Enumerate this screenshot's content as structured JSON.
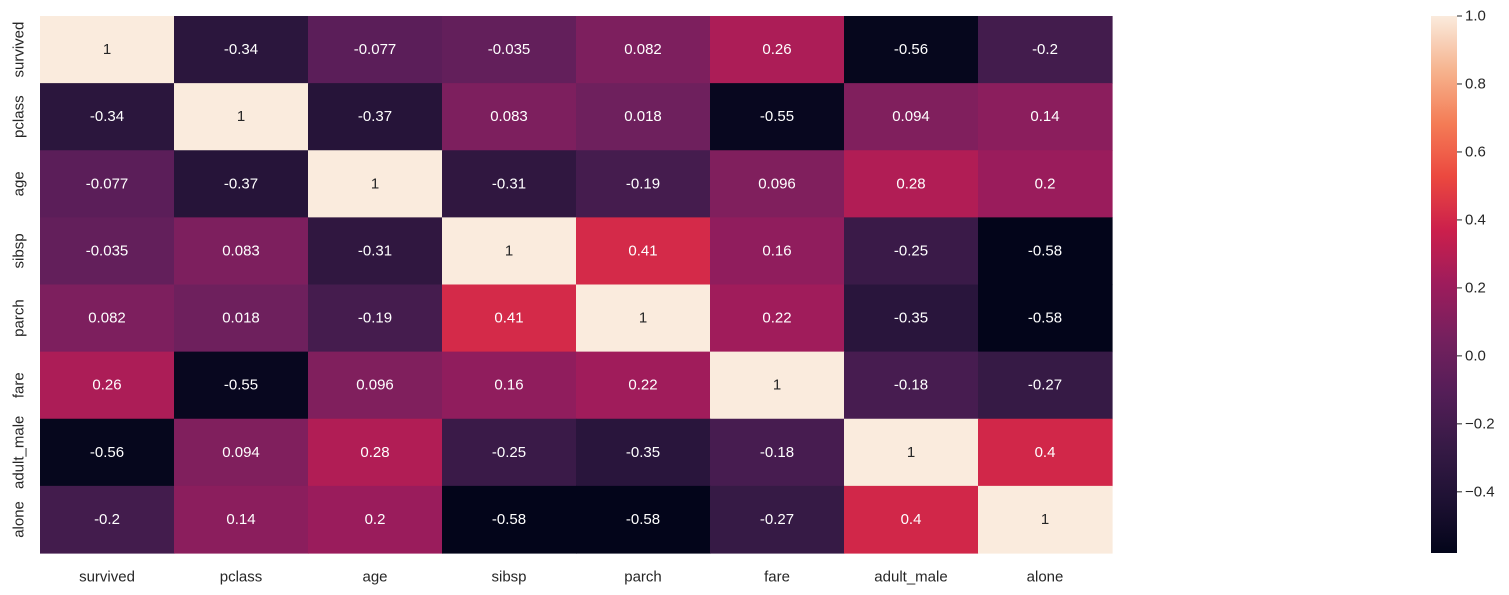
{
  "chart_data": {
    "type": "heatmap",
    "title": "",
    "xlabel": "",
    "ylabel": "",
    "x_labels": [
      "survived",
      "pclass",
      "age",
      "sibsp",
      "parch",
      "fare",
      "adult_male",
      "alone"
    ],
    "y_labels": [
      "survived",
      "pclass",
      "age",
      "sibsp",
      "parch",
      "fare",
      "adult_male",
      "alone"
    ],
    "values": [
      [
        1,
        -0.34,
        -0.077,
        -0.035,
        0.082,
        0.26,
        -0.56,
        -0.2
      ],
      [
        -0.34,
        1,
        -0.37,
        0.083,
        0.018,
        -0.55,
        0.094,
        0.14
      ],
      [
        -0.077,
        -0.37,
        1,
        -0.31,
        -0.19,
        0.096,
        0.28,
        0.2
      ],
      [
        -0.035,
        0.083,
        -0.31,
        1,
        0.41,
        0.16,
        -0.25,
        -0.58
      ],
      [
        0.082,
        0.018,
        -0.19,
        0.41,
        1,
        0.22,
        -0.35,
        -0.58
      ],
      [
        0.26,
        -0.55,
        0.096,
        0.16,
        0.22,
        1,
        -0.18,
        -0.27
      ],
      [
        -0.56,
        0.094,
        0.28,
        -0.25,
        -0.35,
        -0.18,
        1,
        0.4
      ],
      [
        -0.2,
        0.14,
        0.2,
        -0.58,
        -0.58,
        -0.27,
        0.4,
        1
      ]
    ],
    "annotations": [
      [
        "1",
        "-0.34",
        "-0.077",
        "-0.035",
        "0.082",
        "0.26",
        "-0.56",
        "-0.2"
      ],
      [
        "-0.34",
        "1",
        "-0.37",
        "0.083",
        "0.018",
        "-0.55",
        "0.094",
        "0.14"
      ],
      [
        "-0.077",
        "-0.37",
        "1",
        "-0.31",
        "-0.19",
        "0.096",
        "0.28",
        "0.2"
      ],
      [
        "-0.035",
        "0.083",
        "-0.31",
        "1",
        "0.41",
        "0.16",
        "-0.25",
        "-0.58"
      ],
      [
        "0.082",
        "0.018",
        "-0.19",
        "0.41",
        "1",
        "0.22",
        "-0.35",
        "-0.58"
      ],
      [
        "0.26",
        "-0.55",
        "0.096",
        "0.16",
        "0.22",
        "1",
        "-0.18",
        "-0.27"
      ],
      [
        "-0.56",
        "0.094",
        "0.28",
        "-0.25",
        "-0.35",
        "-0.18",
        "1",
        "0.4"
      ],
      [
        "-0.2",
        "0.14",
        "0.2",
        "-0.58",
        "-0.58",
        "-0.27",
        "0.4",
        "1"
      ]
    ],
    "colormap": "rocket",
    "colorbar": {
      "range": [
        -0.58,
        1.0
      ],
      "ticks": [
        1.0,
        0.8,
        0.6,
        0.4,
        0.2,
        0.0,
        -0.2,
        -0.4
      ],
      "tick_labels": [
        "1.0",
        "0.8",
        "0.6",
        "0.4",
        "0.2",
        "0.0",
        "−0.2",
        "−0.4"
      ],
      "placement": "right"
    },
    "grid": false,
    "legend": "none"
  }
}
